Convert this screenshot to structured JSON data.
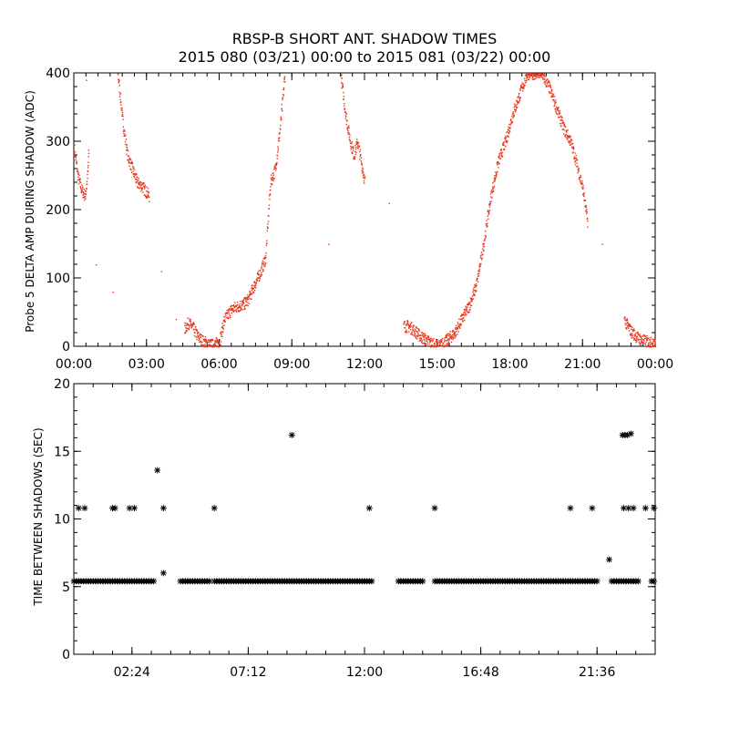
{
  "title_line1": "RBSP-B SHORT ANT. SHADOW TIMES",
  "title_line2": "2015 080 (03/21) 00:00 to 2015 081 (03/22) 00:00",
  "colors": {
    "series_top": "#e8361c",
    "series_bottom": "#000000",
    "axes": "#000000",
    "background": "#ffffff"
  },
  "chart_data": [
    {
      "type": "scatter",
      "ylabel": "Probe 5 DELTA AMP DURING SHADOW (ADC)",
      "xlabel": "",
      "xlim": [
        0,
        24
      ],
      "ylim": [
        0,
        400
      ],
      "xticks": [
        0,
        3,
        6,
        9,
        12,
        15,
        18,
        21,
        24
      ],
      "xtick_labels": [
        "00:00",
        "03:00",
        "06:00",
        "09:00",
        "12:00",
        "15:00",
        "18:00",
        "21:00",
        "00:00"
      ],
      "yticks": [
        0,
        100,
        200,
        300,
        400
      ],
      "ytick_labels": [
        "0",
        "100",
        "200",
        "300",
        "400"
      ],
      "marker": "dot",
      "color": "#e8361c",
      "segments": [
        {
          "x": [
            0.0,
            0.15,
            0.3,
            0.45,
            0.55,
            0.6
          ],
          "y": [
            290,
            250,
            230,
            220,
            250,
            290
          ]
        },
        {
          "x": [
            1.8,
            2.0,
            2.2,
            2.4,
            2.6,
            2.8,
            3.0,
            3.1
          ],
          "y": [
            400,
            330,
            280,
            260,
            240,
            235,
            225,
            220
          ]
        },
        {
          "x": [
            4.55,
            4.7,
            4.9,
            5.1,
            5.3,
            5.5,
            5.75,
            6.0,
            6.2,
            6.5,
            6.8,
            7.0,
            7.2,
            7.5,
            7.7,
            7.9,
            8.1,
            8.3,
            8.5,
            8.7
          ],
          "y": [
            25,
            35,
            28,
            15,
            8,
            5,
            2,
            8,
            40,
            55,
            60,
            62,
            70,
            95,
            110,
            130,
            240,
            260,
            320,
            400
          ]
        },
        {
          "x": [
            11.0,
            11.2,
            11.4,
            11.55,
            11.7,
            11.85,
            12.0
          ],
          "y": [
            400,
            340,
            300,
            280,
            300,
            270,
            240
          ]
        },
        {
          "x": [
            13.6,
            13.8,
            14.0,
            14.3,
            14.6,
            14.9,
            15.1,
            15.4,
            15.7,
            16.0,
            16.3,
            16.6,
            16.9,
            17.2,
            17.5,
            17.8,
            18.1,
            18.4,
            18.7,
            19.0,
            19.3,
            19.6,
            19.9,
            20.2,
            20.5,
            20.8,
            21.0,
            21.2
          ],
          "y": [
            30,
            30,
            25,
            15,
            8,
            2,
            2,
            10,
            20,
            40,
            60,
            90,
            150,
            220,
            270,
            300,
            340,
            370,
            400,
            400,
            400,
            380,
            350,
            320,
            300,
            260,
            230,
            180
          ]
        },
        {
          "x": [
            22.7,
            22.85,
            23.0,
            23.2,
            23.4,
            23.6,
            23.8,
            24.0
          ],
          "y": [
            40,
            30,
            22,
            15,
            10,
            8,
            5,
            2
          ]
        }
      ],
      "scattered_points": {
        "x": [
          0.5,
          0.9,
          1.6,
          3.6,
          4.2,
          10.5,
          13.0,
          21.8
        ],
        "y": [
          390,
          120,
          80,
          110,
          40,
          150,
          210,
          150
        ]
      }
    },
    {
      "type": "scatter",
      "ylabel": "TIME BETWEEN SHADOWS (SEC)",
      "xlabel": "",
      "xlim": [
        0,
        24
      ],
      "ylim": [
        0,
        20
      ],
      "xticks": [
        2.4,
        7.2,
        12.0,
        16.8,
        21.6
      ],
      "xtick_labels": [
        "02:24",
        "07:12",
        "12:00",
        "16:48",
        "21:36"
      ],
      "yticks": [
        0,
        5,
        10,
        15,
        20
      ],
      "ytick_labels": [
        "0",
        "5",
        "10",
        "15",
        "20"
      ],
      "marker": "asterisk",
      "color": "#000000",
      "baseline": {
        "y": 5.4,
        "ranges": [
          [
            0.0,
            3.3
          ],
          [
            4.4,
            5.6
          ],
          [
            5.8,
            12.3
          ],
          [
            13.4,
            14.4
          ],
          [
            14.9,
            21.6
          ],
          [
            22.2,
            23.3
          ],
          [
            23.85,
            24.0
          ]
        ]
      },
      "points": {
        "x": [
          0.2,
          0.45,
          1.6,
          1.7,
          2.3,
          2.5,
          3.45,
          3.7,
          3.7,
          5.8,
          9.0,
          12.2,
          14.9,
          20.5,
          21.4,
          22.1,
          22.65,
          22.75,
          22.85,
          23.0,
          22.7,
          22.9,
          23.1,
          23.6,
          23.95
        ],
        "y": [
          10.8,
          10.8,
          10.8,
          10.8,
          10.8,
          10.8,
          13.6,
          10.8,
          6.0,
          10.8,
          16.2,
          10.8,
          10.8,
          10.8,
          10.8,
          7.0,
          16.2,
          16.2,
          16.2,
          16.3,
          10.8,
          10.8,
          10.8,
          10.8,
          10.8
        ]
      }
    }
  ]
}
